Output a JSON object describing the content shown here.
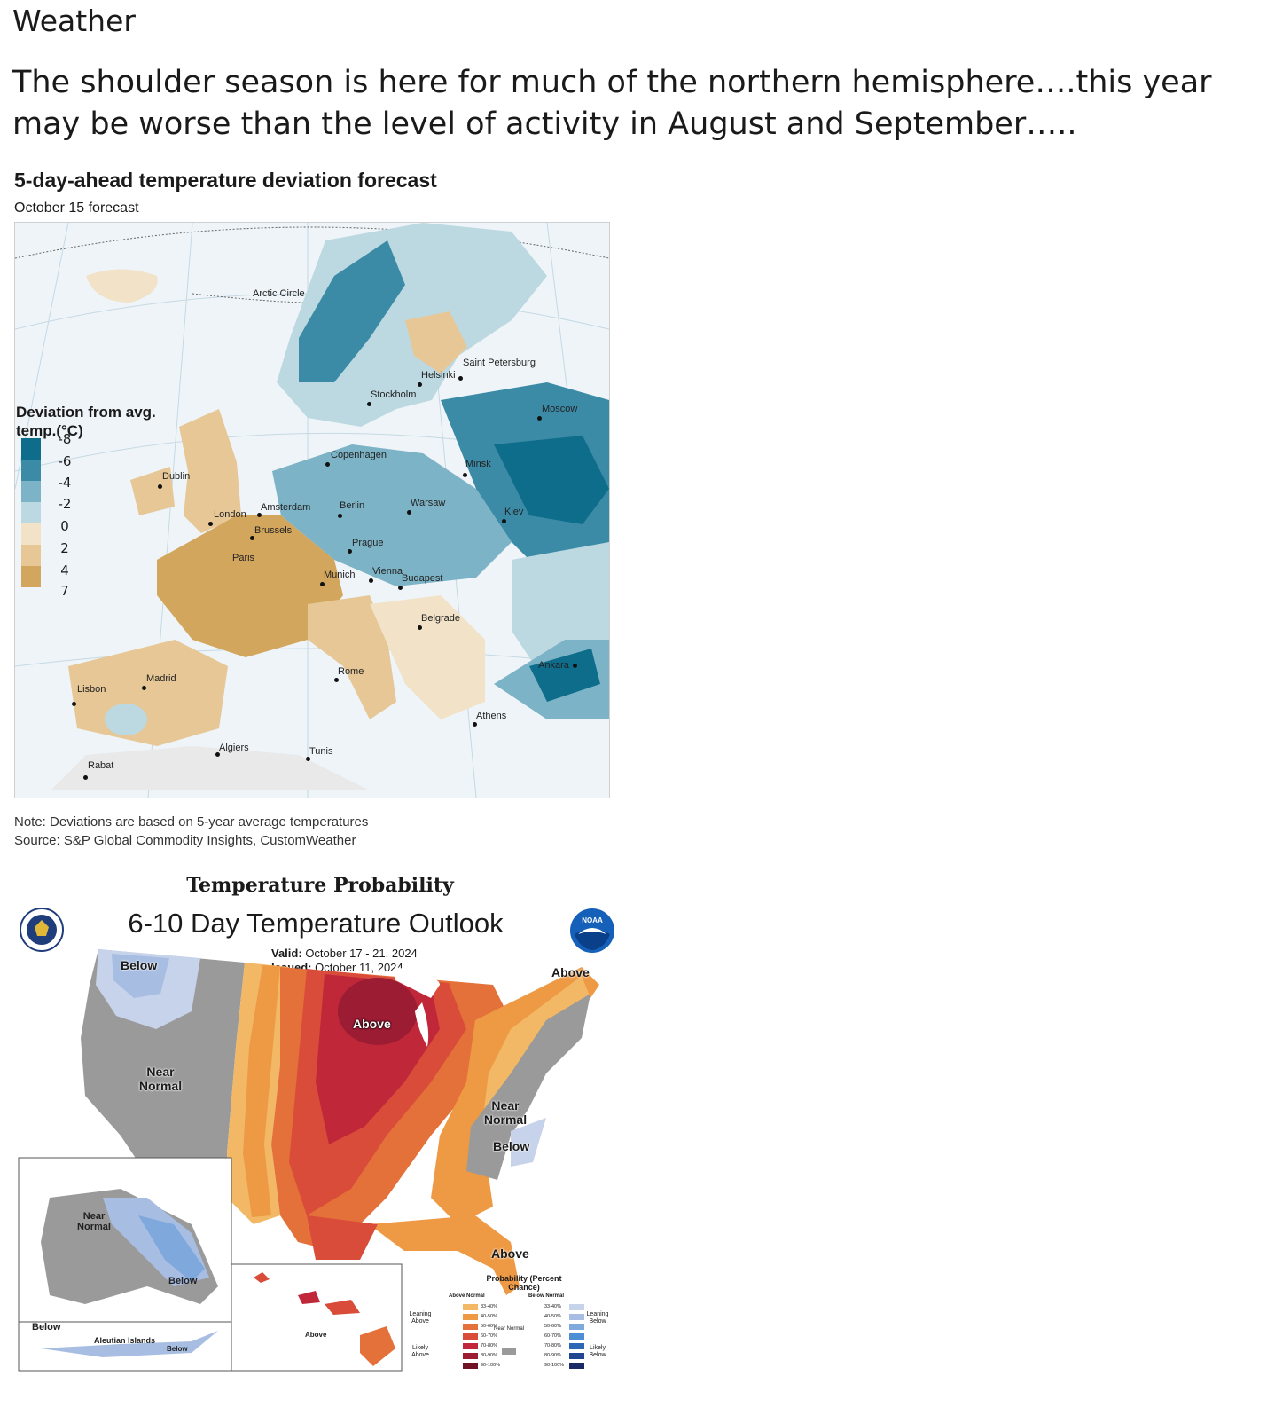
{
  "slide": {
    "title": "Weather",
    "body": "The shoulder season is here for much of the northern hemisphere….this year may be worse than the level of activity in August and September….."
  },
  "europe_map": {
    "title": "5-day-ahead temperature deviation forecast",
    "subtitle": "October 15 forecast",
    "legend_title": "Deviation from avg. temp.(°C)",
    "legend": [
      {
        "value": "-8",
        "color": "#0f6d8c"
      },
      {
        "value": "-6",
        "color": "#3b8ba7"
      },
      {
        "value": "-4",
        "color": "#7db3c6"
      },
      {
        "value": "-2",
        "color": "#bcd9e2"
      },
      {
        "value": "0",
        "color": "#f2e2c8"
      },
      {
        "value": "2",
        "color": "#e6c795"
      },
      {
        "value": "4",
        "color": "#d3a65e"
      },
      {
        "value": "7",
        "color": ""
      }
    ],
    "labels": {
      "arctic_circle": "Arctic Circle",
      "dublin": "Dublin",
      "london": "London",
      "amsterdam": "Amsterdam",
      "brussels": "Brussels",
      "paris": "Paris",
      "copenhagen": "Copenhagen",
      "stockholm": "Stockholm",
      "helsinki": "Helsinki",
      "saint_petersburg": "Saint Petersburg",
      "moscow": "Moscow",
      "minsk": "Minsk",
      "kiev": "Kiev",
      "warsaw": "Warsaw",
      "berlin": "Berlin",
      "prague": "Prague",
      "munich": "Munich",
      "vienna": "Vienna",
      "budapest": "Budapest",
      "belgrade": "Belgrade",
      "rome": "Rome",
      "athens": "Athens",
      "ankara": "Ankara",
      "madrid": "Madrid",
      "lisbon": "Lisbon",
      "algiers": "Algiers",
      "tunis": "Tunis",
      "rabat": "Rabat"
    },
    "note": "Note: Deviations are based on 5-year average temperatures",
    "source": "Source: S&P Global Commodity Insights, CustomWeather"
  },
  "us_outlook": {
    "figure_title": "Temperature Probability",
    "title": "6-10 Day Temperature Outlook",
    "valid_label": "Valid:",
    "valid_value": "October 17 - 21, 2024",
    "issued_label": "Issued:",
    "issued_value": "October 11, 2024",
    "noaa": "NOAA",
    "regions": {
      "below_nw": "Below",
      "near_normal_west": "Near Normal",
      "above_great_lakes": "Above",
      "above_ne": "Above",
      "near_normal_east": "Near Normal",
      "below_se": "Below",
      "above_florida": "Above"
    },
    "alaska": {
      "near_normal": "Near Normal",
      "below_east": "Below",
      "below_sw": "Below",
      "aleutian": "Aleutian Islands",
      "below_aleutian": "Below"
    },
    "hawaii": {
      "above": "Above"
    },
    "legend": {
      "title": "Probability (Percent Chance)",
      "above_head": "Above Normal",
      "below_head": "Below Normal",
      "leaning_above": "Leaning Above",
      "likely_above": "Likely Above",
      "near_normal": "Near Normal",
      "leaning_below": "Leaning Below",
      "likely_below": "Likely Below",
      "ranges": [
        "33-40%",
        "40-50%",
        "50-60%",
        "60-70%",
        "70-80%",
        "80-90%",
        "90-100%"
      ],
      "above_colors": [
        "#f3b866",
        "#ee9a44",
        "#e4703a",
        "#d94c3a",
        "#c0283a",
        "#9c1c34",
        "#6e1224"
      ],
      "below_colors": [
        "#c7d3ea",
        "#a7bde2",
        "#7fa8dc",
        "#4d8ed4",
        "#2d66b4",
        "#21468f",
        "#1a2a66"
      ],
      "near_color": "#9a9a9a"
    }
  }
}
